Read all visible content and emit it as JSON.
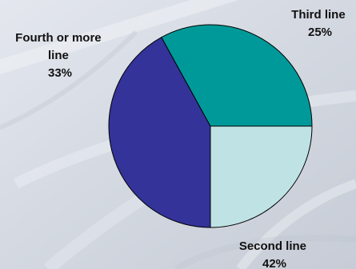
{
  "chart_data": {
    "type": "pie",
    "title": "",
    "slices": [
      {
        "label_lines": [
          "Third line"
        ],
        "percent_label": "25%",
        "value": 25,
        "color": "#bfe3e5"
      },
      {
        "label_lines": [
          "Second line"
        ],
        "percent_label": "42%",
        "value": 42,
        "color": "#333399"
      },
      {
        "label_lines": [
          "Fourth or more",
          "line"
        ],
        "percent_label": "33%",
        "value": 33,
        "color": "#009999"
      }
    ],
    "start_angle_deg": 0,
    "direction": "clockwise",
    "legend": "none"
  }
}
